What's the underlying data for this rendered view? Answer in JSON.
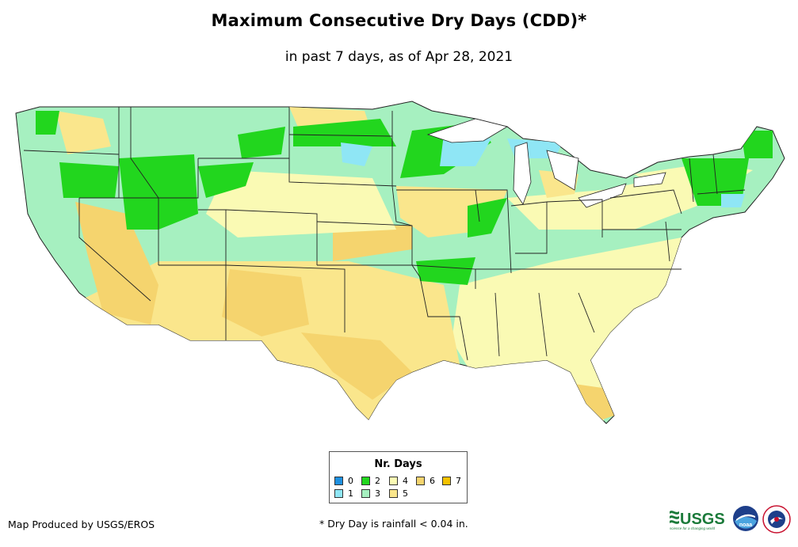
{
  "title": "Maximum Consecutive Dry Days (CDD)*",
  "subtitle": "in past 7 days, as of Apr 28, 2021",
  "legend": {
    "title": "Nr. Days",
    "items": [
      {
        "label": "0",
        "color": "#1e90e0"
      },
      {
        "label": "1",
        "color": "#8fe6f5"
      },
      {
        "label": "2",
        "color": "#22d61e"
      },
      {
        "label": "3",
        "color": "#a6f0c0"
      },
      {
        "label": "4",
        "color": "#fafab4"
      },
      {
        "label": "5",
        "color": "#fae68c"
      },
      {
        "label": "6",
        "color": "#f5d46e"
      },
      {
        "label": "7",
        "color": "#f5c200"
      }
    ]
  },
  "credit": "Map Produced by USGS/EROS",
  "footnote": "* Dry Day is rainfall < 0.04 in.",
  "logos": {
    "usgs": "USGS",
    "usgs_tagline": "science for a changing world",
    "noaa": "noaa"
  }
}
